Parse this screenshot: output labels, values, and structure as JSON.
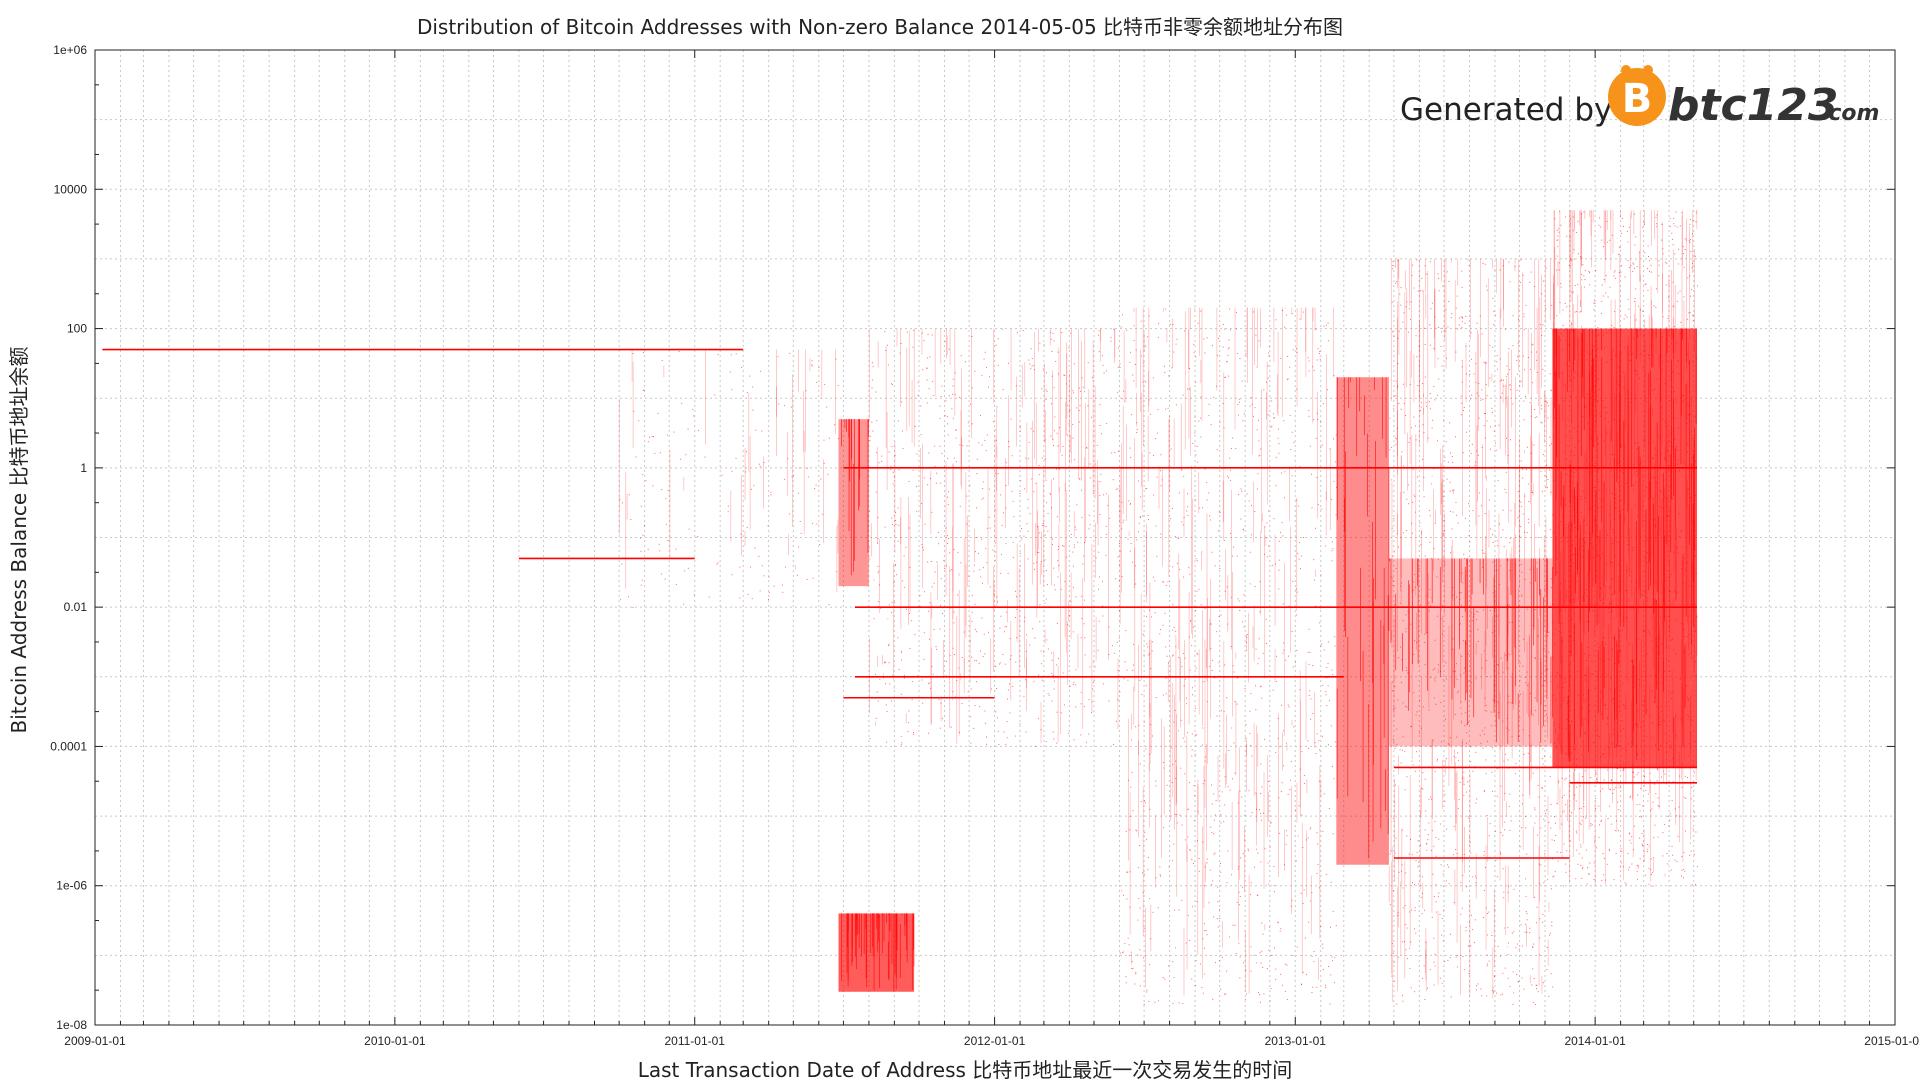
{
  "chart_data": {
    "type": "scatter",
    "title": "Distribution of Bitcoin Addresses with Non-zero Balance  2014-05-05   比特币非零余额地址分布图",
    "xlabel": "Last Transaction Date of Address    比特币地址最近一次交易发生的时间",
    "ylabel": "Bitcoin Address Balance    比特币地址余额",
    "x_scale": "date",
    "y_scale": "log",
    "xlim": [
      "2009-01-01",
      "2015-01-01"
    ],
    "ylim": [
      1e-08,
      1000000
    ],
    "grid": true,
    "marker_color": "#ff0000",
    "x_ticks": [
      {
        "value": "2009-01-01",
        "label": "2009-01-01"
      },
      {
        "value": "2010-01-01",
        "label": "2010-01-01"
      },
      {
        "value": "2011-01-01",
        "label": "2011-01-01"
      },
      {
        "value": "2012-01-01",
        "label": "2012-01-01"
      },
      {
        "value": "2013-01-01",
        "label": "2013-01-01"
      },
      {
        "value": "2014-01-01",
        "label": "2014-01-01"
      },
      {
        "value": "2015-01-01",
        "label": "2015-01-01"
      }
    ],
    "y_ticks": [
      {
        "value": 1000000,
        "label": "1e+06"
      },
      {
        "value": 10000,
        "label": "10000"
      },
      {
        "value": 100,
        "label": "100"
      },
      {
        "value": 1,
        "label": "1"
      },
      {
        "value": 0.01,
        "label": "0.01"
      },
      {
        "value": 0.0001,
        "label": "0.0001"
      },
      {
        "value": 1e-06,
        "label": "1e-06"
      },
      {
        "value": 1e-08,
        "label": "1e-08"
      }
    ],
    "horizontal_bands": [
      {
        "x_start": "2009-01-10",
        "x_end": "2011-03-01",
        "y": 50
      },
      {
        "x_start": "2011-07-01",
        "x_end": "2014-05-05",
        "y": 1
      },
      {
        "x_start": "2011-07-15",
        "x_end": "2014-05-05",
        "y": 0.01
      },
      {
        "x_start": "2011-07-15",
        "x_end": "2013-03-01",
        "y": 0.001
      },
      {
        "x_start": "2013-05-01",
        "x_end": "2014-05-05",
        "y": 5e-05
      },
      {
        "x_start": "2013-05-01",
        "x_end": "2013-12-01",
        "y": 2.5e-06
      },
      {
        "x_start": "2013-12-01",
        "x_end": "2014-05-05",
        "y": 3e-05
      },
      {
        "x_start": "2010-06-01",
        "x_end": "2011-01-01",
        "y": 0.05
      },
      {
        "x_start": "2011-07-01",
        "x_end": "2012-01-01",
        "y": 0.0005
      }
    ],
    "density_clusters": [
      {
        "x_start": "2011-06-25",
        "x_end": "2011-08-01",
        "y_low": 0.02,
        "y_high": 5,
        "density": 0.55
      },
      {
        "x_start": "2011-06-25",
        "x_end": "2011-09-25",
        "y_low": 3e-08,
        "y_high": 4e-07,
        "density": 0.85
      },
      {
        "x_start": "2013-02-20",
        "x_end": "2013-04-25",
        "y_low": 2e-06,
        "y_high": 20,
        "density": 0.6
      },
      {
        "x_start": "2013-11-10",
        "x_end": "2014-05-05",
        "y_low": 5e-05,
        "y_high": 100,
        "density": 0.92
      },
      {
        "x_start": "2013-04-25",
        "x_end": "2013-11-10",
        "y_low": 0.0001,
        "y_high": 0.05,
        "density": 0.35
      }
    ],
    "scatter_regions": [
      {
        "x_start": "2010-10-01",
        "x_end": "2011-06-25",
        "y_low": 0.01,
        "y_high": 50,
        "density": 0.02
      },
      {
        "x_start": "2011-08-01",
        "x_end": "2012-06-01",
        "y_low": 0.0001,
        "y_high": 100,
        "density": 0.08
      },
      {
        "x_start": "2012-06-01",
        "x_end": "2013-02-20",
        "y_low": 2e-08,
        "y_high": 200,
        "density": 0.12
      },
      {
        "x_start": "2013-04-25",
        "x_end": "2013-11-10",
        "y_low": 2e-08,
        "y_high": 1000,
        "density": 0.18
      },
      {
        "x_start": "2013-11-10",
        "x_end": "2014-05-05",
        "y_low": 1e-06,
        "y_high": 5000,
        "density": 0.25
      }
    ]
  },
  "watermark": {
    "prefix": "Generated by",
    "brand": "btc123",
    "tld": ".com",
    "logo_color": "#f7931a"
  }
}
